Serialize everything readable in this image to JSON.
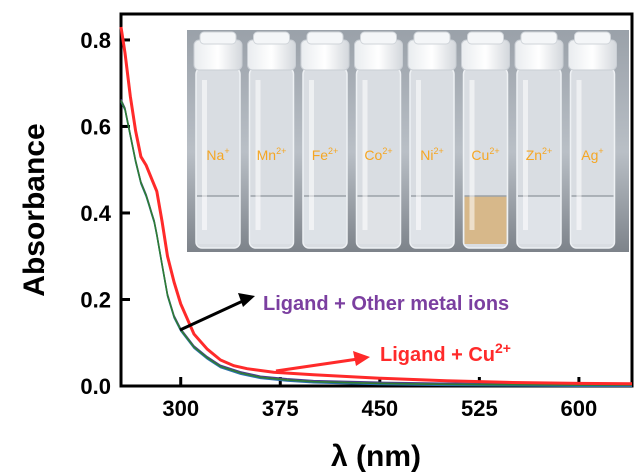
{
  "chart_data": {
    "type": "line",
    "xlabel": "λ (nm)",
    "ylabel": "Absorbance",
    "xlim": [
      255,
      640
    ],
    "ylim": [
      0.0,
      0.86
    ],
    "xticks": [
      300,
      375,
      450,
      525,
      600
    ],
    "xtick_labels": [
      "300",
      "375",
      "450",
      "525",
      "600"
    ],
    "yticks": [
      0.0,
      0.2,
      0.4,
      0.6,
      0.8
    ],
    "ytick_labels": [
      "0.0",
      "0.2",
      "0.4",
      "0.6",
      "0.8"
    ],
    "series": [
      {
        "name": "Ligand + Other metal ions",
        "color": "#2e7d32",
        "x": [
          255,
          258,
          262,
          266,
          270,
          274,
          276,
          278,
          280,
          282,
          286,
          290,
          295,
          300,
          310,
          320,
          330,
          345,
          360,
          380,
          400,
          450,
          500,
          550,
          600,
          640
        ],
        "y": [
          0.66,
          0.64,
          0.58,
          0.52,
          0.47,
          0.44,
          0.42,
          0.4,
          0.38,
          0.35,
          0.28,
          0.21,
          0.16,
          0.13,
          0.09,
          0.065,
          0.045,
          0.03,
          0.02,
          0.014,
          0.01,
          0.006,
          0.004,
          0.003,
          0.002,
          0.002
        ]
      },
      {
        "name": "Ligand + Cu2+",
        "color": "#ff2a2a",
        "x": [
          255,
          258,
          262,
          266,
          270,
          274,
          278,
          282,
          286,
          290,
          295,
          300,
          310,
          320,
          330,
          340,
          350,
          370,
          400,
          450,
          500,
          550,
          600,
          640
        ],
        "y": [
          0.83,
          0.77,
          0.67,
          0.59,
          0.53,
          0.51,
          0.48,
          0.45,
          0.38,
          0.3,
          0.24,
          0.19,
          0.12,
          0.085,
          0.06,
          0.047,
          0.04,
          0.032,
          0.026,
          0.018,
          0.012,
          0.008,
          0.006,
          0.005
        ]
      }
    ],
    "annotations": [
      {
        "text": "Ligand + Other metal ions",
        "color": "#7b3fa0"
      },
      {
        "text_main": "Ligand + Cu",
        "text_sup": "2+",
        "color": "#ff2a2a"
      }
    ]
  },
  "inset_photo": {
    "vials": [
      {
        "ion": "Na",
        "charge": "+",
        "solution_color": "#dfe3e8"
      },
      {
        "ion": "Mn",
        "charge": "2+",
        "solution_color": "#dfe3e8"
      },
      {
        "ion": "Fe",
        "charge": "2+",
        "solution_color": "#dde2e7"
      },
      {
        "ion": "Co",
        "charge": "2+",
        "solution_color": "#dfe2e6"
      },
      {
        "ion": "Ni",
        "charge": "2+",
        "solution_color": "#dfe3e8"
      },
      {
        "ion": "Cu",
        "charge": "2+",
        "solution_color": "#d7b88a"
      },
      {
        "ion": "Zn",
        "charge": "2+",
        "solution_color": "#dfe3e8"
      },
      {
        "ion": "Ag",
        "charge": "+",
        "solution_color": "#dfe3e8"
      }
    ],
    "label_color": "#f5a623"
  }
}
